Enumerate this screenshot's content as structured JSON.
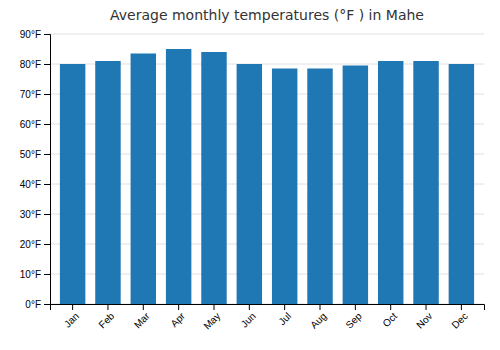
{
  "chart_data": {
    "type": "bar",
    "title": "Average monthly temperatures (°F ) in Mahe",
    "categories": [
      "Jan",
      "Feb",
      "Mar",
      "Apr",
      "May",
      "Jun",
      "Jul",
      "Aug",
      "Sep",
      "Oct",
      "Nov",
      "Dec"
    ],
    "values": [
      80,
      81,
      83.5,
      85,
      84,
      80,
      78.5,
      78.5,
      79.5,
      81,
      81,
      80
    ],
    "ylim": [
      0,
      90
    ],
    "yticks": [
      {
        "value": 0,
        "label": "0°F"
      },
      {
        "value": 10,
        "label": "10°F"
      },
      {
        "value": 20,
        "label": "20°F"
      },
      {
        "value": 30,
        "label": "30°F"
      },
      {
        "value": 40,
        "label": "40°F"
      },
      {
        "value": 50,
        "label": "50°F"
      },
      {
        "value": 60,
        "label": "60°F"
      },
      {
        "value": 70,
        "label": "70°F"
      },
      {
        "value": 80,
        "label": "80°F"
      },
      {
        "value": 90,
        "label": "90°F"
      }
    ],
    "grid": true
  }
}
